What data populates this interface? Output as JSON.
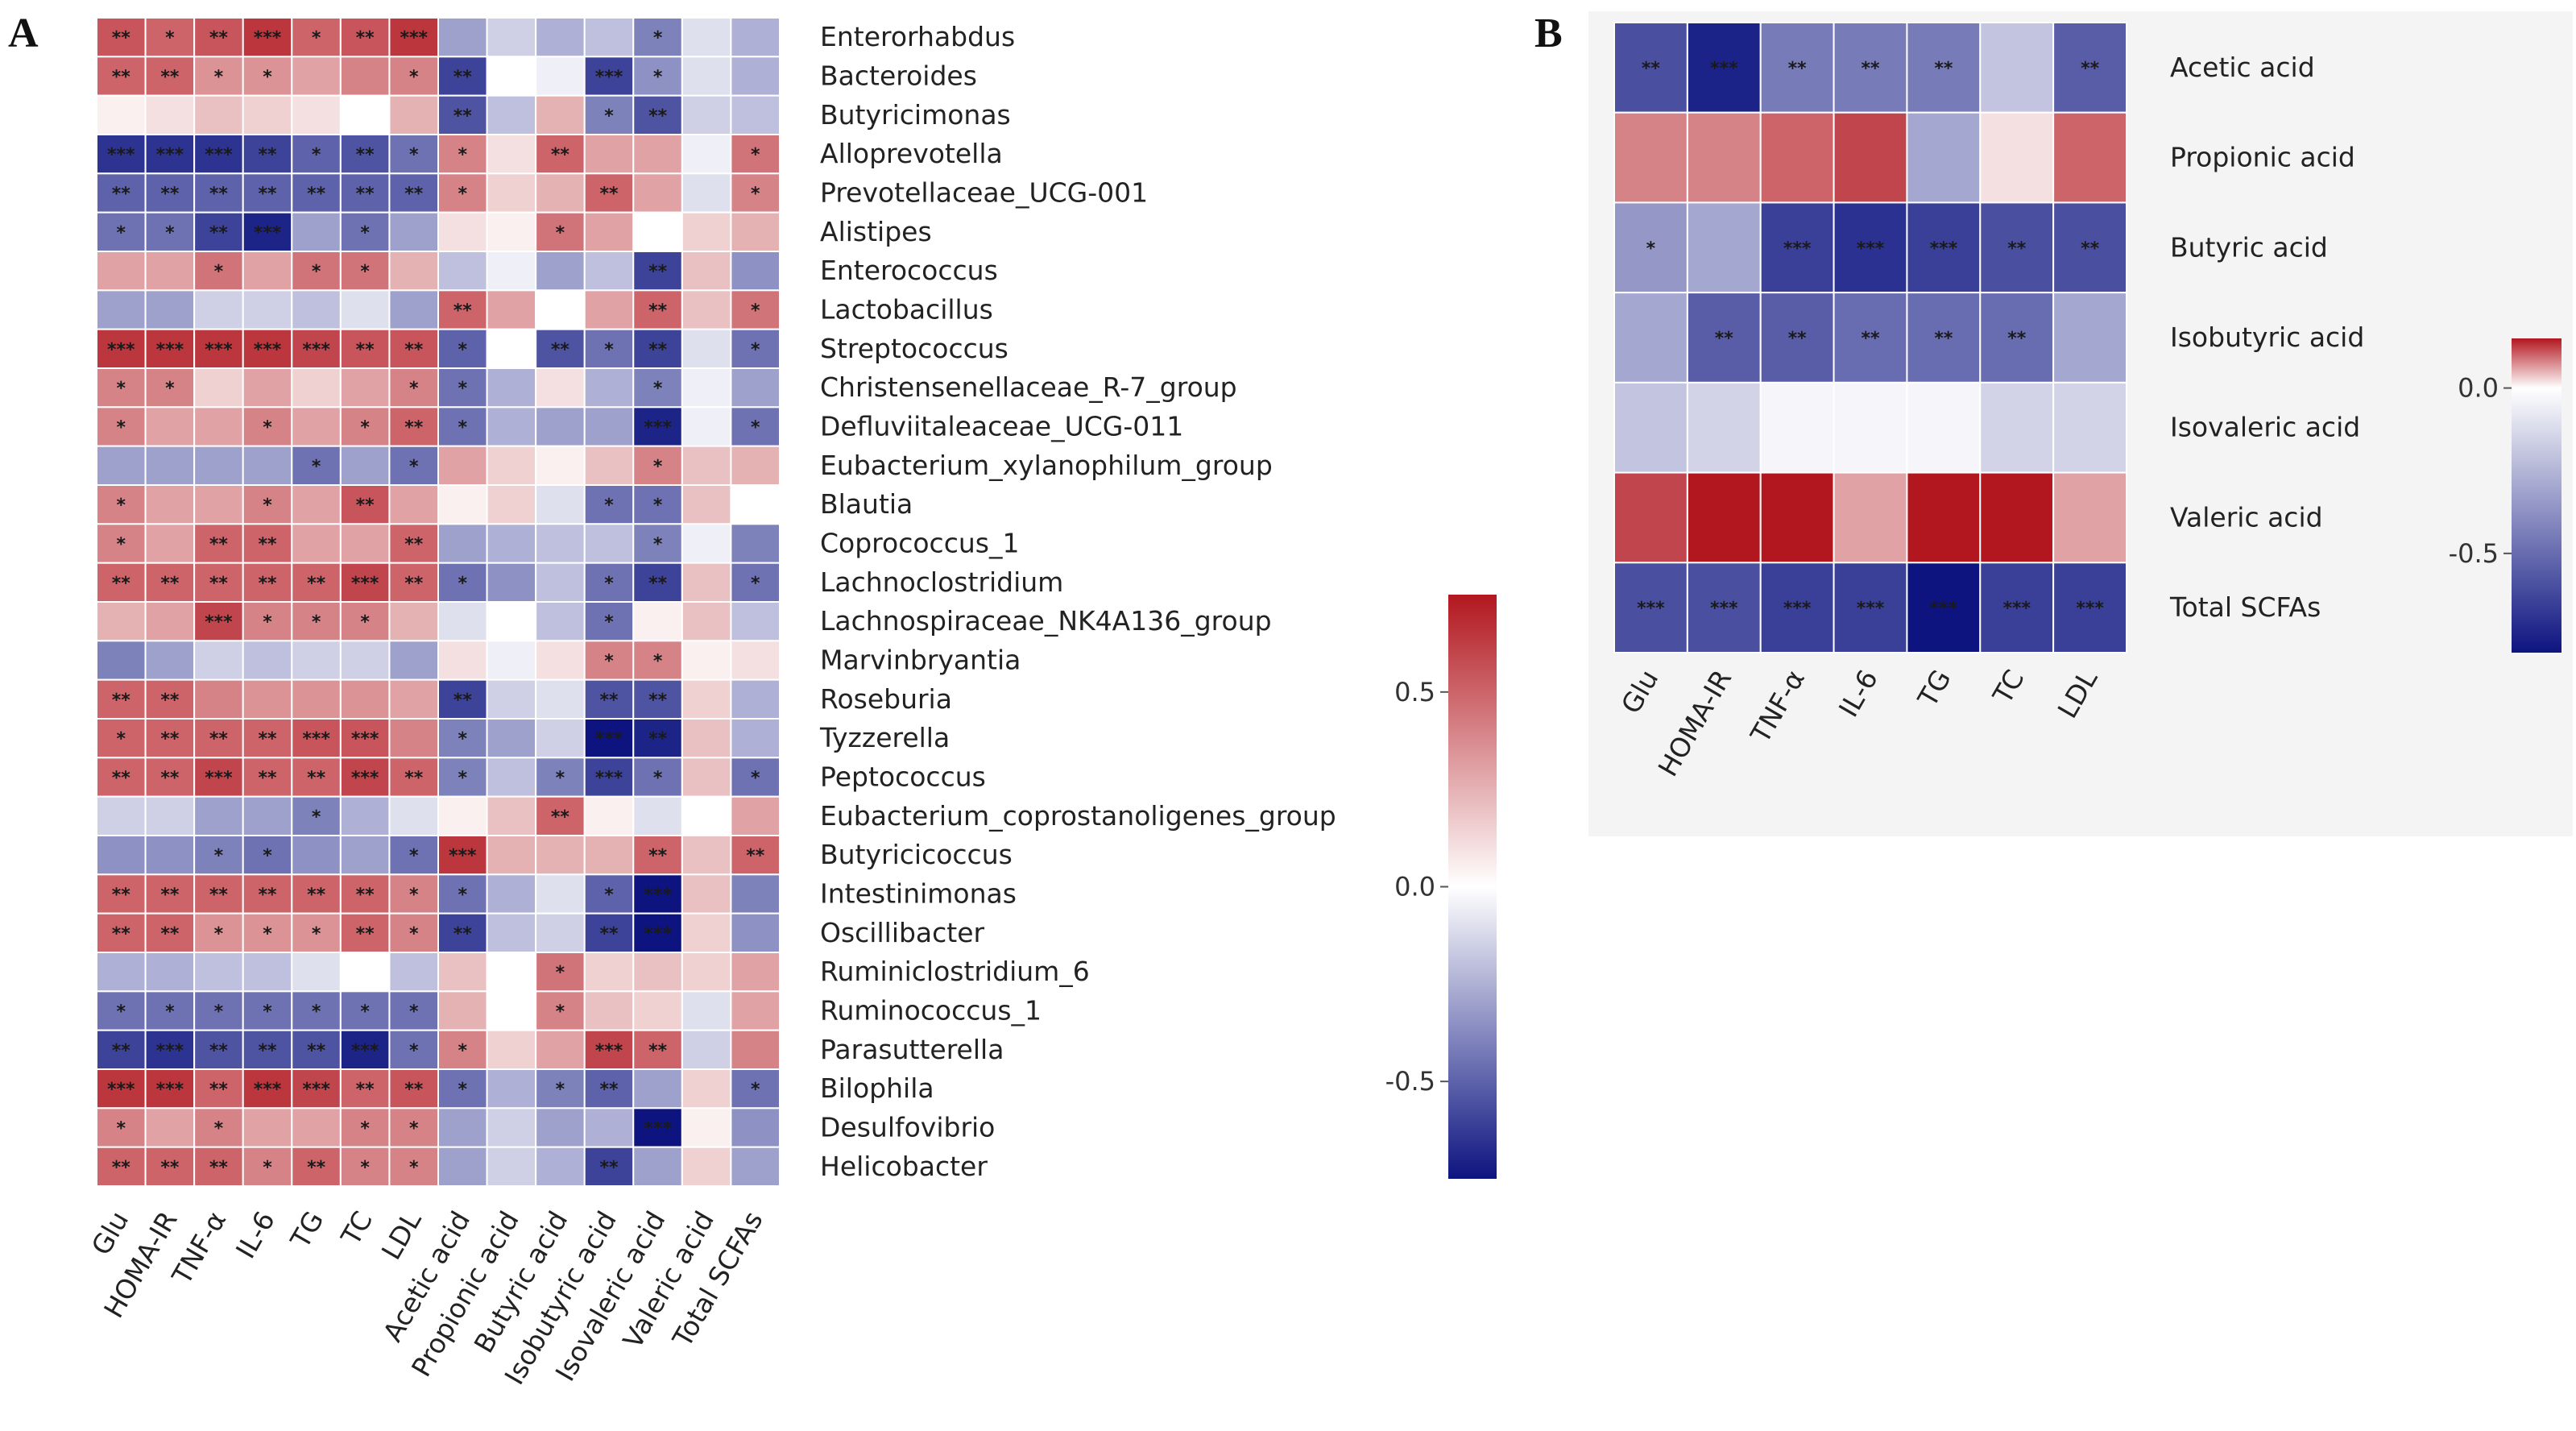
{
  "panels": {
    "A": {
      "letter": "A",
      "rows": [
        "Enterorhabdus",
        "Bacteroides",
        "Butyricimonas",
        "Alloprevotella",
        "Prevotellaceae_UCG-001",
        "Alistipes",
        "Enterococcus",
        "Lactobacillus",
        "Streptococcus",
        "Christensenellaceae_R-7_group",
        "Defluviitaleaceae_UCG-011",
        "Eubacterium_xylanophilum_group",
        "Blautia",
        "Coprococcus_1",
        "Lachnoclostridium",
        "Lachnospiraceae_NK4A136_group",
        "Marvinbryantia",
        "Roseburia",
        "Tyzzerella",
        "Peptococcus",
        "Eubacterium_coprostanoligenes_group",
        "Butyricicoccus",
        "Intestinimonas",
        "Oscillibacter",
        "Ruminiclostridium_6",
        "Ruminococcus_1",
        "Parasutterella",
        "Bilophila",
        "Desulfovibrio",
        "Helicobacter"
      ],
      "columns": [
        "Glu",
        "HOMA-IR",
        "TNF-α",
        "IL-6",
        "TG",
        "TC",
        "LDL",
        "Acetic  acid",
        "Propionic  acid",
        "Butyric  acid",
        "Isobutyric  acid",
        "Isovaleric  acid",
        "Valeric  acid",
        "Total  SCFAs"
      ]
    },
    "B": {
      "letter": "B",
      "rows": [
        "Acetic  acid",
        "Propionic  acid",
        "Butyric  acid",
        "Isobutyric  acid",
        "Isovaleric  acid",
        "Valeric  acid",
        "Total  SCFAs"
      ],
      "columns": [
        "Glu",
        "HOMA-IR",
        "TNF-α",
        "IL-6",
        "TG",
        "TC",
        "LDL"
      ]
    }
  },
  "colors": {
    "low": "#0d1480",
    "mid": "#ffffff",
    "high": "#b2171f"
  },
  "chart_data": [
    {
      "type": "heatmap",
      "panel": "A",
      "legend": {
        "position": "right",
        "range": [
          -0.75,
          0.75
        ],
        "ticks": [
          0.5,
          0.0,
          -0.5
        ],
        "tick_labels": [
          "0.5",
          "0.0",
          "-0.5"
        ]
      },
      "values": [
        [
          0.55,
          0.5,
          0.55,
          0.65,
          0.5,
          0.55,
          0.65,
          -0.3,
          -0.15,
          -0.25,
          -0.2,
          -0.4,
          -0.1,
          -0.25
        ],
        [
          0.5,
          0.5,
          0.35,
          0.35,
          0.3,
          0.4,
          0.4,
          -0.6,
          0.0,
          -0.05,
          -0.6,
          -0.35,
          -0.1,
          -0.25
        ],
        [
          0.05,
          0.1,
          0.2,
          0.15,
          0.1,
          0.0,
          0.25,
          -0.55,
          -0.2,
          0.25,
          -0.4,
          -0.55,
          -0.15,
          -0.2
        ],
        [
          -0.65,
          -0.65,
          -0.65,
          -0.6,
          -0.5,
          -0.55,
          -0.45,
          0.4,
          0.1,
          0.5,
          0.3,
          0.3,
          -0.05,
          0.45
        ],
        [
          -0.5,
          -0.5,
          -0.5,
          -0.5,
          -0.5,
          -0.5,
          -0.5,
          0.4,
          0.15,
          0.25,
          0.5,
          0.3,
          -0.1,
          0.4
        ],
        [
          -0.45,
          -0.45,
          -0.6,
          -0.7,
          -0.3,
          -0.45,
          -0.3,
          0.1,
          0.05,
          0.45,
          0.3,
          0.0,
          0.15,
          0.25
        ],
        [
          0.3,
          0.3,
          0.45,
          0.3,
          0.45,
          0.45,
          0.25,
          -0.2,
          -0.05,
          -0.3,
          -0.2,
          -0.6,
          0.2,
          -0.35
        ],
        [
          -0.3,
          -0.3,
          -0.15,
          -0.15,
          -0.2,
          -0.1,
          -0.3,
          0.5,
          0.3,
          0.0,
          0.3,
          0.5,
          0.2,
          0.45
        ],
        [
          0.65,
          0.65,
          0.65,
          0.65,
          0.6,
          0.55,
          0.55,
          -0.5,
          0.0,
          -0.55,
          -0.45,
          -0.6,
          -0.1,
          -0.45
        ],
        [
          0.4,
          0.4,
          0.15,
          0.3,
          0.15,
          0.3,
          0.4,
          -0.45,
          -0.25,
          0.1,
          -0.25,
          -0.4,
          -0.05,
          -0.3
        ],
        [
          0.4,
          0.3,
          0.3,
          0.4,
          0.3,
          0.4,
          0.5,
          -0.45,
          -0.25,
          -0.3,
          -0.3,
          -0.7,
          -0.05,
          -0.45
        ],
        [
          -0.3,
          -0.3,
          -0.3,
          -0.3,
          -0.45,
          -0.3,
          -0.45,
          0.3,
          0.15,
          0.05,
          0.2,
          0.4,
          0.2,
          0.25
        ],
        [
          0.4,
          0.3,
          0.3,
          0.4,
          0.3,
          0.55,
          0.3,
          0.05,
          0.15,
          -0.1,
          -0.45,
          -0.45,
          0.2,
          0.0
        ],
        [
          0.4,
          0.3,
          0.5,
          0.5,
          0.3,
          0.3,
          0.5,
          -0.3,
          -0.25,
          -0.2,
          -0.2,
          -0.4,
          -0.05,
          -0.4
        ],
        [
          0.5,
          0.5,
          0.5,
          0.5,
          0.5,
          0.6,
          0.5,
          -0.45,
          -0.35,
          -0.2,
          -0.45,
          -0.6,
          0.2,
          -0.45
        ],
        [
          0.25,
          0.3,
          0.6,
          0.4,
          0.4,
          0.4,
          0.25,
          -0.1,
          0.0,
          -0.2,
          -0.45,
          0.05,
          0.2,
          -0.2
        ],
        [
          -0.4,
          -0.3,
          -0.15,
          -0.2,
          -0.15,
          -0.15,
          -0.3,
          0.1,
          -0.05,
          0.1,
          0.4,
          0.4,
          0.05,
          0.1
        ],
        [
          0.5,
          0.5,
          0.4,
          0.35,
          0.35,
          0.35,
          0.3,
          -0.6,
          -0.15,
          -0.1,
          -0.55,
          -0.55,
          0.15,
          -0.25
        ],
        [
          0.5,
          0.5,
          0.5,
          0.5,
          0.55,
          0.55,
          0.4,
          -0.4,
          -0.3,
          -0.15,
          -0.75,
          -0.7,
          0.2,
          -0.25
        ],
        [
          0.5,
          0.5,
          0.6,
          0.5,
          0.5,
          0.6,
          0.5,
          -0.4,
          -0.2,
          -0.4,
          -0.6,
          -0.45,
          0.2,
          -0.45
        ],
        [
          -0.15,
          -0.15,
          -0.3,
          -0.3,
          -0.4,
          -0.25,
          -0.1,
          0.05,
          0.2,
          0.5,
          0.05,
          -0.1,
          0.0,
          0.3
        ],
        [
          -0.35,
          -0.35,
          -0.4,
          -0.45,
          -0.35,
          -0.3,
          -0.45,
          0.65,
          0.25,
          0.25,
          0.25,
          0.5,
          0.2,
          0.5
        ],
        [
          0.5,
          0.5,
          0.5,
          0.5,
          0.5,
          0.5,
          0.4,
          -0.45,
          -0.25,
          -0.1,
          -0.5,
          -0.75,
          0.2,
          -0.4
        ],
        [
          0.5,
          0.5,
          0.35,
          0.35,
          0.35,
          0.5,
          0.4,
          -0.6,
          -0.2,
          -0.15,
          -0.6,
          -0.75,
          0.15,
          -0.35
        ],
        [
          -0.25,
          -0.25,
          -0.2,
          -0.2,
          -0.1,
          0.0,
          -0.2,
          0.2,
          0.0,
          0.45,
          0.15,
          0.2,
          0.15,
          0.3
        ],
        [
          -0.45,
          -0.45,
          -0.45,
          -0.45,
          -0.45,
          -0.45,
          -0.45,
          0.25,
          0.0,
          0.4,
          0.2,
          0.15,
          -0.1,
          0.3
        ],
        [
          -0.6,
          -0.65,
          -0.55,
          -0.55,
          -0.55,
          -0.7,
          -0.45,
          0.4,
          0.15,
          0.3,
          0.6,
          0.5,
          -0.15,
          0.4
        ],
        [
          0.65,
          0.65,
          0.5,
          0.65,
          0.6,
          0.5,
          0.55,
          -0.45,
          -0.25,
          -0.4,
          -0.5,
          -0.3,
          0.15,
          -0.45
        ],
        [
          0.4,
          0.3,
          0.4,
          0.3,
          0.3,
          0.4,
          0.4,
          -0.3,
          -0.15,
          -0.3,
          -0.25,
          -0.75,
          0.05,
          -0.35
        ],
        [
          0.5,
          0.5,
          0.5,
          0.4,
          0.5,
          0.4,
          0.4,
          -0.3,
          -0.15,
          -0.25,
          -0.6,
          -0.3,
          0.15,
          -0.3
        ]
      ],
      "significance": [
        [
          "**",
          "*",
          "**",
          "***",
          "*",
          "**",
          "***",
          "",
          "",
          "",
          "",
          "*",
          "",
          ""
        ],
        [
          "**",
          "**",
          "*",
          "*",
          "",
          "",
          "*",
          "**",
          "",
          "",
          "***",
          "*",
          "",
          ""
        ],
        [
          "",
          "",
          "",
          "",
          "",
          "",
          "",
          "**",
          "",
          "",
          "*",
          "**",
          "",
          ""
        ],
        [
          "***",
          "***",
          "***",
          "**",
          "*",
          "**",
          "*",
          "*",
          "",
          "**",
          "",
          "",
          "",
          "*"
        ],
        [
          "**",
          "**",
          "**",
          "**",
          "**",
          "**",
          "**",
          "*",
          "",
          "",
          "**",
          "",
          "",
          "*"
        ],
        [
          "*",
          "*",
          "**",
          "***",
          "",
          "*",
          "",
          "",
          "",
          "*",
          "",
          "",
          "",
          ""
        ],
        [
          "",
          "",
          "*",
          "",
          "*",
          "*",
          "",
          "",
          "",
          "",
          "",
          "**",
          "",
          ""
        ],
        [
          "",
          "",
          "",
          "",
          "",
          "",
          "",
          "**",
          "",
          "",
          "",
          "**",
          "",
          "*"
        ],
        [
          "***",
          "***",
          "***",
          "***",
          "***",
          "**",
          "**",
          "*",
          "",
          "**",
          "*",
          "**",
          "",
          "*"
        ],
        [
          "*",
          "*",
          "",
          "",
          "",
          "",
          "*",
          "*",
          "",
          "",
          "",
          "*",
          "",
          ""
        ],
        [
          "*",
          "",
          "",
          "*",
          "",
          "*",
          "**",
          "*",
          "",
          "",
          "",
          "***",
          "",
          "*"
        ],
        [
          "",
          "",
          "",
          "",
          "*",
          "",
          "*",
          "",
          "",
          "",
          "",
          "*",
          "",
          ""
        ],
        [
          "*",
          "",
          "",
          "*",
          "",
          "**",
          "",
          "",
          "",
          "",
          "*",
          "*",
          "",
          ""
        ],
        [
          "*",
          "",
          "**",
          "**",
          "",
          "",
          "**",
          "",
          "",
          "",
          "",
          "*",
          "",
          ""
        ],
        [
          "**",
          "**",
          "**",
          "**",
          "**",
          "***",
          "**",
          "*",
          "",
          "",
          "*",
          "**",
          "",
          "*"
        ],
        [
          "",
          "",
          "***",
          "*",
          "*",
          "*",
          "",
          "",
          "",
          "",
          "*",
          "",
          "",
          ""
        ],
        [
          "",
          "",
          "",
          "",
          "",
          "",
          "",
          "",
          "",
          "",
          "*",
          "*",
          "",
          ""
        ],
        [
          "**",
          "**",
          "",
          "",
          "",
          "",
          "",
          "**",
          "",
          "",
          "**",
          "**",
          "",
          ""
        ],
        [
          "*",
          "**",
          "**",
          "**",
          "***",
          "***",
          "",
          "*",
          "",
          "",
          "***",
          "**",
          "",
          ""
        ],
        [
          "**",
          "**",
          "***",
          "**",
          "**",
          "***",
          "**",
          "*",
          "",
          "*",
          "***",
          "*",
          "",
          "*"
        ],
        [
          "",
          "",
          "",
          "",
          "*",
          "",
          "",
          "",
          "",
          "**",
          "",
          "",
          "",
          ""
        ],
        [
          "",
          "",
          "*",
          "*",
          "",
          "",
          "*",
          "***",
          "",
          "",
          "",
          "**",
          "",
          "**"
        ],
        [
          "**",
          "**",
          "**",
          "**",
          "**",
          "**",
          "*",
          "*",
          "",
          "",
          "*",
          "***",
          "",
          ""
        ],
        [
          "**",
          "**",
          "*",
          "*",
          "*",
          "**",
          "*",
          "**",
          "",
          "",
          "**",
          "***",
          "",
          ""
        ],
        [
          "",
          "",
          "",
          "",
          "",
          "",
          "",
          "",
          "",
          "*",
          "",
          "",
          "",
          ""
        ],
        [
          "*",
          "*",
          "*",
          "*",
          "*",
          "*",
          "*",
          "",
          "",
          "*",
          "",
          "",
          "",
          ""
        ],
        [
          "**",
          "***",
          "**",
          "**",
          "**",
          "***",
          "*",
          "*",
          "",
          "",
          "***",
          "**",
          "",
          ""
        ],
        [
          "***",
          "***",
          "**",
          "***",
          "***",
          "**",
          "**",
          "*",
          "",
          "*",
          "**",
          "",
          "",
          "*"
        ],
        [
          "*",
          "",
          "*",
          "",
          "",
          "*",
          "*",
          "",
          "",
          "",
          "",
          "***",
          "",
          ""
        ],
        [
          "**",
          "**",
          "**",
          "*",
          "**",
          "*",
          "*",
          "",
          "",
          "",
          "**",
          "",
          "",
          ""
        ]
      ]
    },
    {
      "type": "heatmap",
      "panel": "B",
      "legend": {
        "position": "right",
        "range": [
          -0.8,
          0.15
        ],
        "ticks": [
          0.0,
          -0.5
        ],
        "tick_labels": [
          "0.0",
          "-0.5"
        ]
      },
      "values": [
        [
          -0.6,
          -0.75,
          -0.45,
          -0.45,
          -0.45,
          -0.2,
          -0.55
        ],
        [
          0.08,
          0.08,
          0.1,
          0.12,
          -0.3,
          0.02,
          0.1
        ],
        [
          -0.35,
          -0.3,
          -0.65,
          -0.7,
          -0.65,
          -0.6,
          -0.6
        ],
        [
          -0.3,
          -0.55,
          -0.55,
          -0.5,
          -0.5,
          -0.5,
          -0.3
        ],
        [
          -0.2,
          -0.15,
          -0.03,
          -0.03,
          -0.03,
          -0.15,
          -0.15
        ],
        [
          0.12,
          0.15,
          0.15,
          0.06,
          0.15,
          0.3,
          0.06
        ],
        [
          -0.6,
          -0.6,
          -0.65,
          -0.65,
          -0.8,
          -0.65,
          -0.65
        ]
      ],
      "significance": [
        [
          "**",
          "***",
          "**",
          "**",
          "**",
          "",
          "**"
        ],
        [
          "",
          "",
          "",
          "",
          "",
          "",
          ""
        ],
        [
          "*",
          "",
          "***",
          "***",
          "***",
          "**",
          "**"
        ],
        [
          "",
          "**",
          "**",
          "**",
          "**",
          "**",
          ""
        ],
        [
          "",
          "",
          "",
          "",
          "",
          "",
          ""
        ],
        [
          "",
          "",
          "",
          "",
          "",
          "",
          ""
        ],
        [
          "***",
          "***",
          "***",
          "***",
          "***",
          "***",
          "***"
        ]
      ]
    }
  ]
}
